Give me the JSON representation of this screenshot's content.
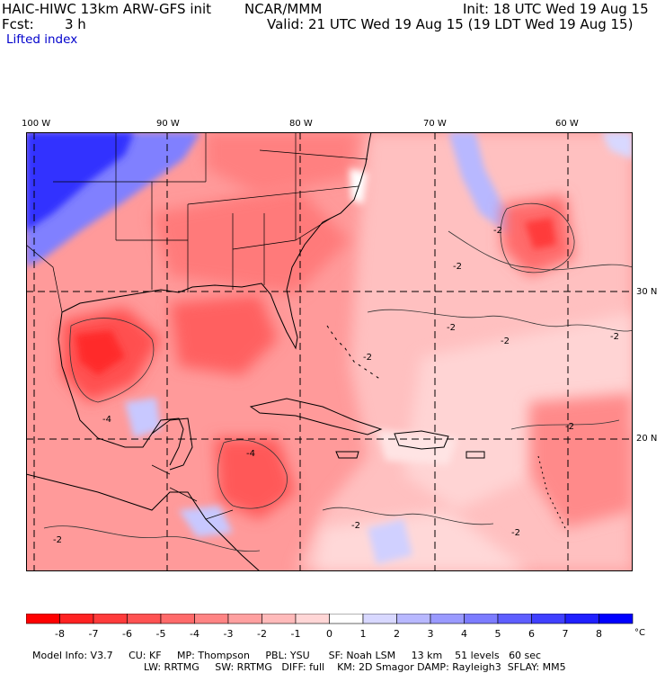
{
  "header": {
    "title": "HAIC-HIWC 13km ARW-GFS init",
    "org": "NCAR/MMM",
    "init": "Init: 18 UTC Wed 19 Aug 15",
    "fcst_label": "Fcst:",
    "fcst_value": "3 h",
    "valid": "Valid: 21 UTC Wed 19 Aug 15 (19 LDT Wed 19 Aug 15)",
    "field": "Lifted index"
  },
  "lon_ticks": [
    "100 W",
    "90 W",
    "80 W",
    "70 W",
    "60 W"
  ],
  "lat_ticks": [
    "30 N",
    "20 N"
  ],
  "contour_labels": [
    "-2",
    "-2",
    "-2",
    "-2",
    "-2",
    "-2",
    "-2",
    "-2",
    "-4",
    "-2",
    "-2",
    "-4"
  ],
  "colorbar": {
    "labels": [
      "-8",
      "-7",
      "-6",
      "-5",
      "-4",
      "-3",
      "-2",
      "-1",
      "0",
      "1",
      "2",
      "3",
      "4",
      "5",
      "6",
      "7",
      "8"
    ],
    "unit": "°C",
    "colors": [
      "#ff0000",
      "#ff2222",
      "#ff3b3b",
      "#ff5252",
      "#ff6a6a",
      "#ff8484",
      "#ffa0a0",
      "#ffbaba",
      "#ffd6d6",
      "#ffffff",
      "#d8d8ff",
      "#b8b8ff",
      "#9a9aff",
      "#7c7cff",
      "#5e5eff",
      "#4040ff",
      "#2020ff",
      "#0000ff"
    ]
  },
  "footer": {
    "line1": [
      "Model Info: V3.7",
      "CU: KF",
      "MP: Thompson",
      "PBL: YSU",
      "SF: Noah LSM",
      "13 km",
      "51 levels",
      "60 sec"
    ],
    "line2": [
      "LW: RRTMG",
      "SW: RRTMG",
      "DIFF: full",
      "KM: 2D Smagor",
      "DAMP: Rayleigh3",
      "SFLAY: MM5"
    ]
  }
}
